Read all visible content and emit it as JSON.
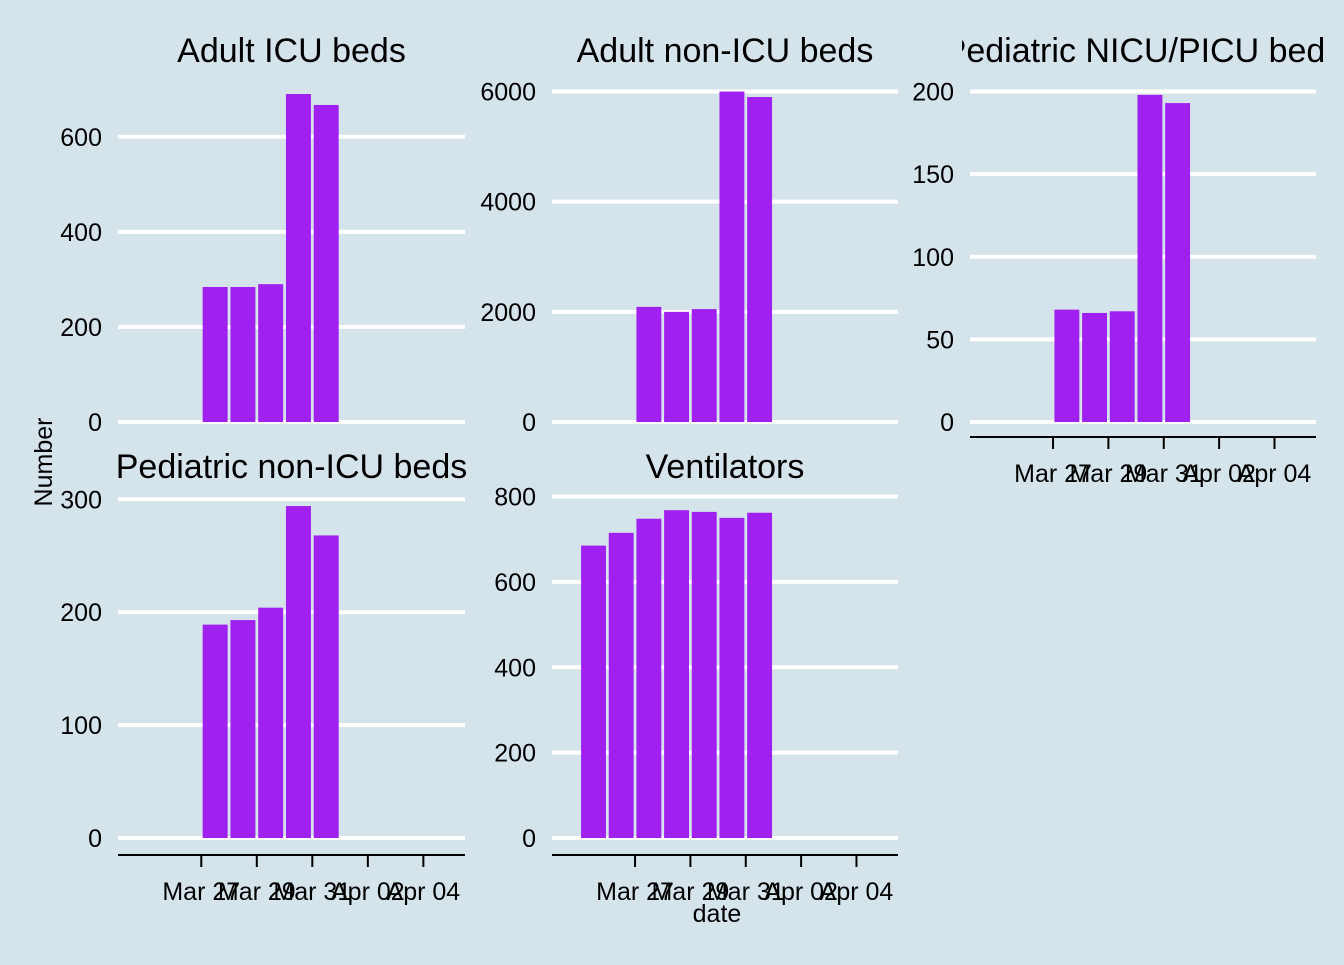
{
  "chart_data": {
    "type": "bar",
    "ylabel": "Number",
    "xlabel": "date",
    "x_tick_labels": [
      "Mar 27",
      "Mar 29",
      "Mar 31",
      "Apr 02",
      "Apr 04"
    ],
    "colors": {
      "bar": "#a020f0",
      "grid": "#ffffff",
      "background": "#d5e4eb",
      "axis": "#000000"
    },
    "grid": "horizontal",
    "panels": [
      {
        "title": "Adult ICU beds",
        "dates": [
          "2020-03-27",
          "2020-03-28",
          "2020-03-29",
          "2020-03-30",
          "2020-03-31"
        ],
        "values": [
          284,
          284,
          290,
          690,
          667
        ],
        "yticks": [
          0,
          200,
          400,
          600
        ],
        "ylim": [
          0,
          730
        ]
      },
      {
        "title": "Adult non-ICU beds",
        "dates": [
          "2020-03-27",
          "2020-03-28",
          "2020-03-29",
          "2020-03-30",
          "2020-03-31"
        ],
        "values": [
          2090,
          2000,
          2050,
          6000,
          5900
        ],
        "yticks": [
          0,
          2000,
          4000,
          6000
        ],
        "ylim": [
          0,
          6300
        ]
      },
      {
        "title": "Pediatric NICU/PICU beds",
        "dates": [
          "2020-03-27",
          "2020-03-28",
          "2020-03-29",
          "2020-03-30",
          "2020-03-31"
        ],
        "values": [
          68,
          66,
          67,
          198,
          193
        ],
        "yticks": [
          0,
          50,
          100,
          150,
          200
        ],
        "ylim": [
          0,
          210
        ]
      },
      {
        "title": "Pediatric non-ICU beds",
        "dates": [
          "2020-03-27",
          "2020-03-28",
          "2020-03-29",
          "2020-03-30",
          "2020-03-31"
        ],
        "values": [
          189,
          193,
          204,
          294,
          268
        ],
        "yticks": [
          0,
          100,
          200,
          300
        ],
        "ylim": [
          0,
          310
        ]
      },
      {
        "title": "Ventilators",
        "dates": [
          "2020-03-25",
          "2020-03-26",
          "2020-03-27",
          "2020-03-28",
          "2020-03-29",
          "2020-03-30",
          "2020-03-31"
        ],
        "values": [
          685,
          715,
          748,
          768,
          764,
          750,
          762
        ],
        "yticks": [
          0,
          200,
          400,
          600,
          800
        ],
        "ylim": [
          0,
          820
        ]
      }
    ]
  }
}
